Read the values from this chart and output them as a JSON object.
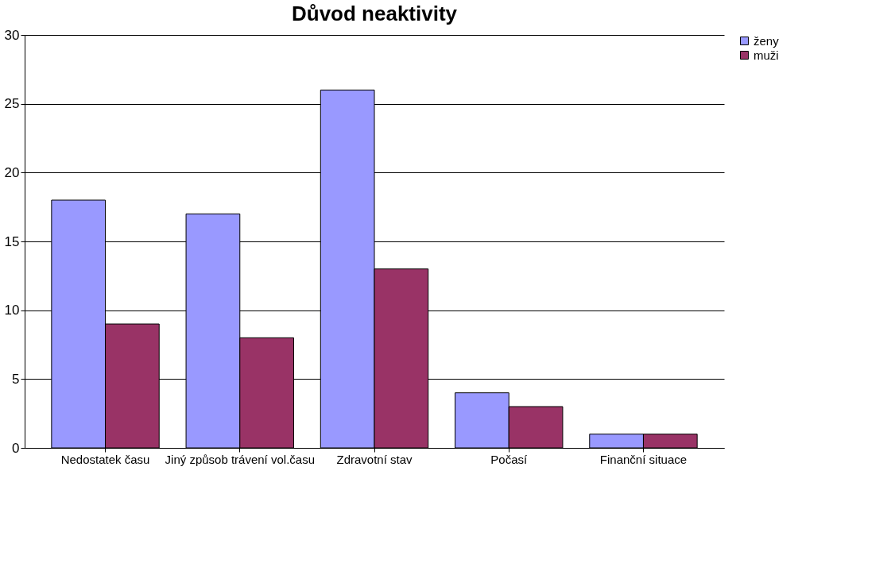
{
  "chart_data": {
    "type": "bar",
    "title": "Důvod neaktivity",
    "categories": [
      "Nedostatek času",
      "Jiný způsob trávení vol.času",
      "Zdravotní stav",
      "Počasí",
      "Finanční situace"
    ],
    "series": [
      {
        "name": "ženy",
        "color": "#9999ff",
        "values": [
          18,
          17,
          26,
          4,
          1
        ]
      },
      {
        "name": "muži",
        "color": "#993366",
        "values": [
          9,
          8,
          13,
          3,
          1
        ]
      }
    ],
    "ylim": [
      0,
      30
    ],
    "yticks": [
      0,
      5,
      10,
      15,
      20,
      25,
      30
    ],
    "grid": "y",
    "legend": "right"
  }
}
